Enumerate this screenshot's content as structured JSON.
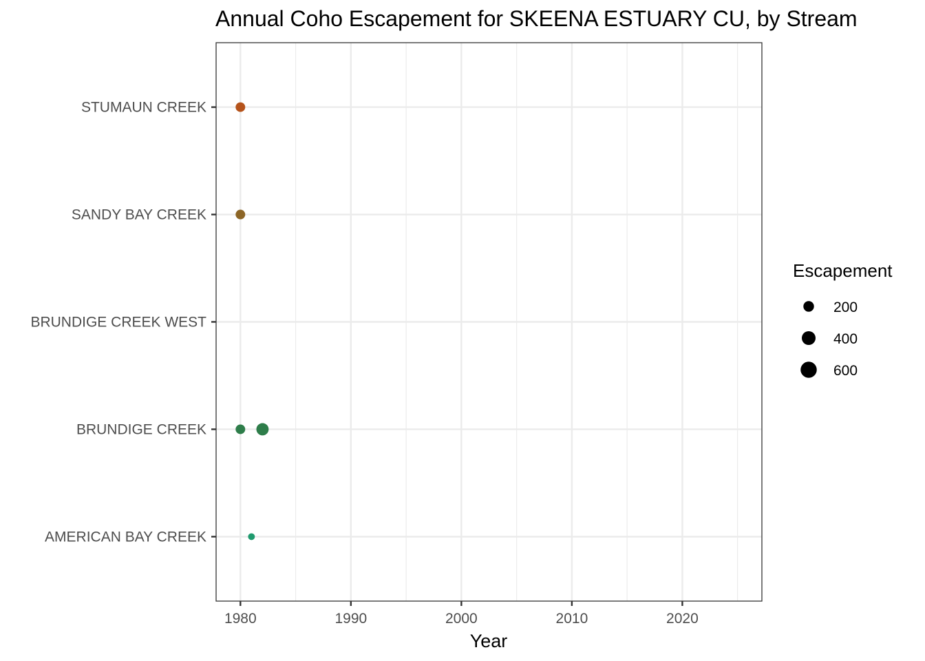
{
  "chart_data": {
    "type": "scatter",
    "title": "Annual Coho Escapement for SKEENA ESTUARY CU, by Stream",
    "xlabel": "Year",
    "ylabel": "",
    "xlim": [
      1977.8,
      2027.2
    ],
    "xticks": [
      1980,
      1990,
      2000,
      2010,
      2020
    ],
    "xtick_labels": [
      "1980",
      "1990",
      "2000",
      "2010",
      "2020"
    ],
    "categories": [
      "AMERICAN BAY CREEK",
      "BRUNDIGE CREEK",
      "BRUNDIGE CREEK WEST",
      "SANDY BAY CREEK",
      "STUMAUN CREEK"
    ],
    "grid": true,
    "series": [
      {
        "name": "STUMAUN CREEK",
        "color": "#b5531b",
        "points": [
          {
            "year": 1980,
            "escapement": 150
          }
        ]
      },
      {
        "name": "SANDY BAY CREEK",
        "color": "#8c6526",
        "points": [
          {
            "year": 1980,
            "escapement": 150
          }
        ]
      },
      {
        "name": "BRUNDIGE CREEK WEST",
        "color": "#4a7a3a",
        "points": []
      },
      {
        "name": "BRUNDIGE CREEK",
        "color": "#2e7d4a",
        "points": [
          {
            "year": 1980,
            "escapement": 150
          },
          {
            "year": 1982,
            "escapement": 300
          }
        ]
      },
      {
        "name": "AMERICAN BAY CREEK",
        "color": "#1f9a6e",
        "points": [
          {
            "year": 1981,
            "escapement": 50
          }
        ]
      }
    ],
    "legend": {
      "title": "Escapement",
      "position": "right",
      "entries": [
        {
          "label": "200",
          "value": 200
        },
        {
          "label": "400",
          "value": 400
        },
        {
          "label": "600",
          "value": 600
        }
      ]
    }
  }
}
